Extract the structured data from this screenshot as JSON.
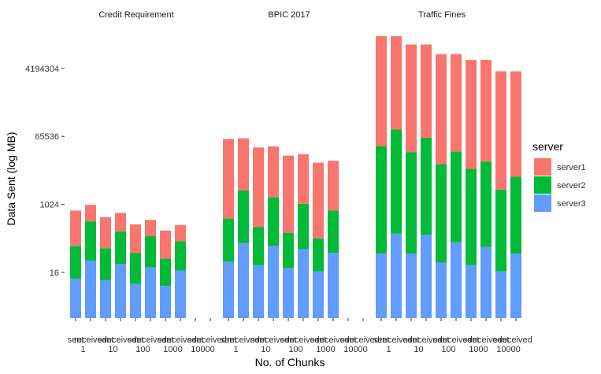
{
  "chart_data": {
    "type": "bar",
    "stacked": true,
    "log_scale": "base 2 (log MB)",
    "ylabel": "Data Sent (log MB)",
    "xlabel": "No. of Chunks",
    "yticks": [
      {
        "value": 16,
        "label": "16"
      },
      {
        "value": 1024,
        "label": "1024"
      },
      {
        "value": 65536,
        "label": "65536"
      },
      {
        "value": 4194304,
        "label": "4194304"
      }
    ],
    "ylim": [
      1,
      268435456
    ],
    "legend": {
      "title": "server",
      "position": "right"
    },
    "series": [
      {
        "name": "server1",
        "color": "#F8766D"
      },
      {
        "name": "server2",
        "color": "#00BA38"
      },
      {
        "name": "server3",
        "color": "#619CFF"
      }
    ],
    "subaxis_labels": [
      "sent",
      "received"
    ],
    "panels": [
      {
        "title": "Credit Requirement",
        "chunks": [
          "1",
          "10",
          "100",
          "1000",
          "10000"
        ],
        "bars": [
          {
            "chunk": "1",
            "type": "sent",
            "server3": 10,
            "server2": 70,
            "server1": 620
          },
          {
            "chunk": "1",
            "type": "received",
            "server3": 32,
            "server2": 330,
            "server1": 630
          },
          {
            "chunk": "10",
            "type": "sent",
            "server3": 9,
            "server2": 60,
            "server1": 400
          },
          {
            "chunk": "10",
            "type": "received",
            "server3": 26,
            "server2": 170,
            "server1": 410
          },
          {
            "chunk": "100",
            "type": "sent",
            "server3": 7,
            "server2": 45,
            "server1": 250
          },
          {
            "chunk": "100",
            "type": "received",
            "server3": 21,
            "server2": 125,
            "server1": 250
          },
          {
            "chunk": "1000",
            "type": "sent",
            "server3": 6,
            "server2": 30,
            "server1": 170
          },
          {
            "chunk": "1000",
            "type": "received",
            "server3": 17,
            "server2": 90,
            "server1": 180
          },
          {
            "chunk": "10000",
            "type": "sent",
            "server3": 0,
            "server2": 0,
            "server1": 0
          },
          {
            "chunk": "10000",
            "type": "received",
            "server3": 0,
            "server2": 0,
            "server1": 0
          }
        ]
      },
      {
        "title": "BPIC 2017",
        "chunks": [
          "1",
          "10",
          "100",
          "1000",
          "10000"
        ],
        "bars": [
          {
            "chunk": "1",
            "type": "sent",
            "server3": 30,
            "server2": 400,
            "server1": 55000
          },
          {
            "chunk": "1",
            "type": "received",
            "server3": 95,
            "server2": 2300,
            "server1": 56000
          },
          {
            "chunk": "10",
            "type": "sent",
            "server3": 24,
            "server2": 230,
            "server1": 33000
          },
          {
            "chunk": "10",
            "type": "received",
            "server3": 80,
            "server2": 1500,
            "server1": 34000
          },
          {
            "chunk": "100",
            "type": "sent",
            "server3": 20,
            "server2": 160,
            "server1": 20000
          },
          {
            "chunk": "100",
            "type": "received",
            "server3": 65,
            "server2": 1000,
            "server1": 21000
          },
          {
            "chunk": "1000",
            "type": "sent",
            "server3": 16,
            "server2": 110,
            "server1": 13000
          },
          {
            "chunk": "1000",
            "type": "received",
            "server3": 52,
            "server2": 650,
            "server1": 14000
          },
          {
            "chunk": "10000",
            "type": "sent",
            "server3": 0,
            "server2": 0,
            "server1": 0
          },
          {
            "chunk": "10000",
            "type": "received",
            "server3": 0,
            "server2": 0,
            "server1": 0
          }
        ]
      },
      {
        "title": "Traffic Fines",
        "chunks": [
          "1",
          "10",
          "100",
          "1000",
          "10000"
        ],
        "bars": [
          {
            "chunk": "1",
            "type": "sent",
            "server3": 50,
            "server2": 36000,
            "server1": 30000000
          },
          {
            "chunk": "1",
            "type": "received",
            "server3": 170,
            "server2": 100000,
            "server1": 30000000
          },
          {
            "chunk": "10",
            "type": "sent",
            "server3": 50,
            "server2": 25000,
            "server1": 18000000
          },
          {
            "chunk": "10",
            "type": "received",
            "server3": 160,
            "server2": 60000,
            "server1": 18000000
          },
          {
            "chunk": "100",
            "type": "sent",
            "server3": 28,
            "server2": 12000,
            "server1": 10000000
          },
          {
            "chunk": "100",
            "type": "received",
            "server3": 100,
            "server2": 26000,
            "server1": 10000000
          },
          {
            "chunk": "1000",
            "type": "sent",
            "server3": 24,
            "server2": 9000,
            "server1": 7000000
          },
          {
            "chunk": "1000",
            "type": "received",
            "server3": 75,
            "server2": 14000,
            "server1": 7000000
          },
          {
            "chunk": "10000",
            "type": "sent",
            "server3": 16,
            "server2": 2500,
            "server1": 3500000
          },
          {
            "chunk": "10000",
            "type": "received",
            "server3": 50,
            "server2": 5500,
            "server1": 3500000
          }
        ]
      }
    ]
  }
}
